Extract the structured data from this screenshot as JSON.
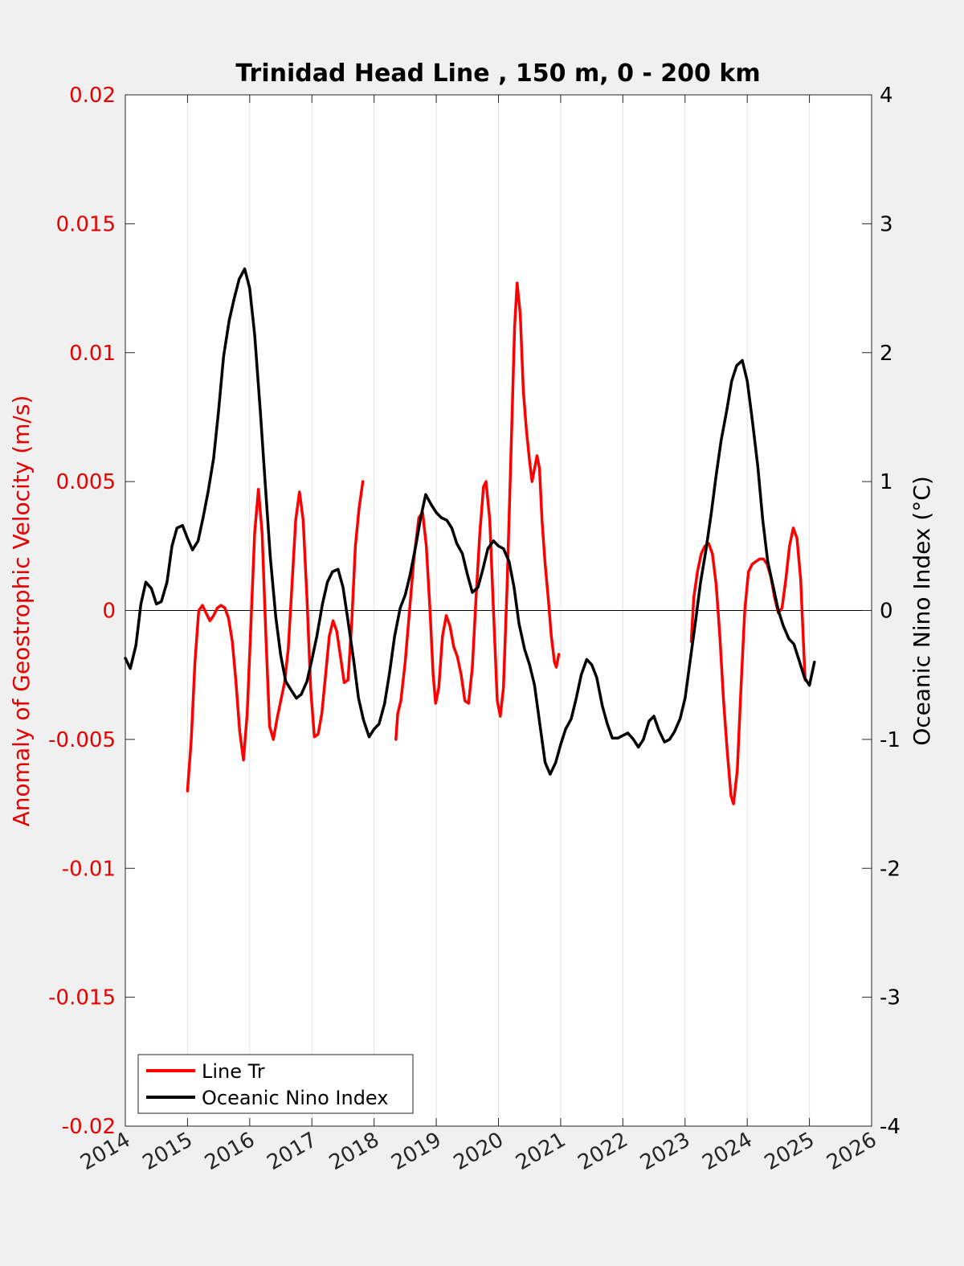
{
  "chart_data": {
    "type": "line",
    "title": "Trinidad Head Line , 150 m, 0 - 200 km",
    "ylabel_left": "Anomaly of Geostrophic Velocity (m/s)",
    "ylabel_right": "Oceanic Nino Index (°C)",
    "xlabel": "",
    "xlim": [
      2014,
      2026
    ],
    "ylim_left": [
      -0.02,
      0.02
    ],
    "ylim_right": [
      -4,
      4
    ],
    "x_ticks": [
      "2014",
      "2015",
      "2016",
      "2017",
      "2018",
      "2019",
      "2020",
      "2021",
      "2022",
      "2023",
      "2024",
      "2025",
      "2026"
    ],
    "y_left_ticks": [
      "0.02",
      "0.015",
      "0.01",
      "0.005",
      "0",
      "-0.005",
      "-0.01",
      "-0.015",
      "-0.02"
    ],
    "y_right_ticks": [
      "4",
      "3",
      "2",
      "1",
      "0",
      "-1",
      "-2",
      "-3",
      "-4"
    ],
    "grid": "vertical",
    "legend_position": "bottom-left",
    "colors": {
      "line_tr": "#ff0000",
      "oni": "#000000",
      "left_axis": "#e60000",
      "right_axis": "#000000"
    },
    "series": [
      {
        "name": "Line Tr",
        "axis": "left",
        "segments": [
          [
            [
              2015.0,
              -0.007
            ],
            [
              2015.06,
              -0.005
            ],
            [
              2015.12,
              -0.002
            ],
            [
              2015.18,
              0.0
            ],
            [
              2015.24,
              0.0002
            ],
            [
              2015.3,
              -0.0001
            ],
            [
              2015.36,
              -0.0004
            ],
            [
              2015.42,
              -0.0002
            ],
            [
              2015.48,
              0.0001
            ],
            [
              2015.54,
              0.0002
            ],
            [
              2015.6,
              0.0001
            ],
            [
              2015.66,
              -0.0003
            ],
            [
              2015.72,
              -0.0012
            ],
            [
              2015.78,
              -0.0028
            ],
            [
              2015.84,
              -0.0047
            ],
            [
              2015.9,
              -0.0058
            ],
            [
              2015.96,
              -0.004
            ],
            [
              2016.02,
              -0.0005
            ],
            [
              2016.08,
              0.003
            ],
            [
              2016.14,
              0.0047
            ],
            [
              2016.2,
              0.003
            ],
            [
              2016.26,
              -0.001
            ],
            [
              2016.32,
              -0.0045
            ],
            [
              2016.38,
              -0.005
            ],
            [
              2016.44,
              -0.0042
            ],
            [
              2016.5,
              -0.0035
            ],
            [
              2016.56,
              -0.0028
            ],
            [
              2016.62,
              -0.0015
            ],
            [
              2016.68,
              0.001
            ],
            [
              2016.74,
              0.0035
            ],
            [
              2016.8,
              0.0046
            ],
            [
              2016.86,
              0.0035
            ],
            [
              2016.92,
              0.0005
            ],
            [
              2016.98,
              -0.003
            ],
            [
              2017.04,
              -0.0049
            ],
            [
              2017.1,
              -0.0048
            ],
            [
              2017.16,
              -0.004
            ],
            [
              2017.22,
              -0.0025
            ],
            [
              2017.28,
              -0.001
            ],
            [
              2017.34,
              -0.0004
            ],
            [
              2017.4,
              -0.0008
            ],
            [
              2017.46,
              -0.0018
            ],
            [
              2017.52,
              -0.0028
            ],
            [
              2017.58,
              -0.0027
            ],
            [
              2017.64,
              -0.0005
            ],
            [
              2017.7,
              0.0025
            ],
            [
              2017.76,
              0.004
            ],
            [
              2017.82,
              0.005
            ]
          ],
          [
            [
              2018.35,
              -0.005
            ],
            [
              2018.38,
              -0.004
            ],
            [
              2018.43,
              -0.0035
            ],
            [
              2018.5,
              -0.002
            ],
            [
              2018.57,
              0.0
            ],
            [
              2018.64,
              0.002
            ],
            [
              2018.72,
              0.0036
            ],
            [
              2018.78,
              0.0038
            ],
            [
              2018.84,
              0.0025
            ],
            [
              2018.9,
              0.0
            ],
            [
              2018.95,
              -0.0025
            ],
            [
              2018.99,
              -0.0036
            ],
            [
              2019.04,
              -0.003
            ],
            [
              2019.1,
              -0.001
            ],
            [
              2019.16,
              -0.0002
            ],
            [
              2019.22,
              -0.0006
            ],
            [
              2019.28,
              -0.0014
            ],
            [
              2019.34,
              -0.0018
            ],
            [
              2019.4,
              -0.0025
            ],
            [
              2019.46,
              -0.0035
            ],
            [
              2019.52,
              -0.0036
            ],
            [
              2019.58,
              -0.0022
            ],
            [
              2019.64,
              0.0005
            ],
            [
              2019.7,
              0.003
            ],
            [
              2019.76,
              0.0048
            ],
            [
              2019.8,
              0.005
            ],
            [
              2019.86,
              0.0035
            ],
            [
              2019.92,
              0.0
            ],
            [
              2019.98,
              -0.0035
            ],
            [
              2020.03,
              -0.0041
            ],
            [
              2020.08,
              -0.003
            ],
            [
              2020.14,
              0.001
            ],
            [
              2020.2,
              0.006
            ],
            [
              2020.26,
              0.011
            ],
            [
              2020.3,
              0.0127
            ],
            [
              2020.35,
              0.0115
            ],
            [
              2020.4,
              0.0085
            ],
            [
              2020.45,
              0.007
            ],
            [
              2020.5,
              0.0058
            ],
            [
              2020.54,
              0.005
            ],
            [
              2020.58,
              0.0055
            ],
            [
              2020.62,
              0.006
            ],
            [
              2020.66,
              0.0055
            ],
            [
              2020.7,
              0.0035
            ],
            [
              2020.75,
              0.0018
            ],
            [
              2020.8,
              0.0005
            ],
            [
              2020.85,
              -0.001
            ],
            [
              2020.9,
              -0.002
            ],
            [
              2020.93,
              -0.0022
            ],
            [
              2020.97,
              -0.0017
            ]
          ],
          [
            [
              2023.1,
              -0.0012
            ],
            [
              2023.14,
              0.0005
            ],
            [
              2023.2,
              0.0015
            ],
            [
              2023.26,
              0.0022
            ],
            [
              2023.32,
              0.0025
            ],
            [
              2023.38,
              0.0026
            ],
            [
              2023.44,
              0.0022
            ],
            [
              2023.5,
              0.001
            ],
            [
              2023.56,
              -0.001
            ],
            [
              2023.62,
              -0.0035
            ],
            [
              2023.68,
              -0.0055
            ],
            [
              2023.74,
              -0.0072
            ],
            [
              2023.78,
              -0.0075
            ],
            [
              2023.84,
              -0.0062
            ],
            [
              2023.9,
              -0.003
            ],
            [
              2023.96,
              0.0
            ],
            [
              2024.02,
              0.0015
            ],
            [
              2024.08,
              0.0018
            ],
            [
              2024.14,
              0.0019
            ],
            [
              2024.2,
              0.002
            ],
            [
              2024.26,
              0.002
            ],
            [
              2024.32,
              0.0018
            ],
            [
              2024.38,
              0.0013
            ],
            [
              2024.44,
              0.0005
            ],
            [
              2024.5,
              -0.0001
            ],
            [
              2024.56,
              0.0001
            ],
            [
              2024.62,
              0.0012
            ],
            [
              2024.68,
              0.0025
            ],
            [
              2024.74,
              0.0032
            ],
            [
              2024.8,
              0.0028
            ],
            [
              2024.86,
              0.0012
            ],
            [
              2024.9,
              -0.001
            ],
            [
              2024.93,
              -0.0027
            ]
          ]
        ]
      },
      {
        "name": "Oceanic Nino Index",
        "axis": "right",
        "points": [
          [
            2014.0,
            -0.37
          ],
          [
            2014.08,
            -0.45
          ],
          [
            2014.17,
            -0.27
          ],
          [
            2014.25,
            0.05
          ],
          [
            2014.33,
            0.22
          ],
          [
            2014.42,
            0.17
          ],
          [
            2014.5,
            0.05
          ],
          [
            2014.58,
            0.07
          ],
          [
            2014.67,
            0.22
          ],
          [
            2014.75,
            0.5
          ],
          [
            2014.83,
            0.64
          ],
          [
            2014.92,
            0.66
          ],
          [
            2015.0,
            0.56
          ],
          [
            2015.08,
            0.47
          ],
          [
            2015.17,
            0.54
          ],
          [
            2015.25,
            0.72
          ],
          [
            2015.33,
            0.92
          ],
          [
            2015.42,
            1.18
          ],
          [
            2015.5,
            1.55
          ],
          [
            2015.58,
            1.97
          ],
          [
            2015.67,
            2.25
          ],
          [
            2015.75,
            2.42
          ],
          [
            2015.83,
            2.57
          ],
          [
            2015.92,
            2.65
          ],
          [
            2016.0,
            2.5
          ],
          [
            2016.08,
            2.14
          ],
          [
            2016.17,
            1.55
          ],
          [
            2016.25,
            0.98
          ],
          [
            2016.33,
            0.42
          ],
          [
            2016.42,
            -0.05
          ],
          [
            2016.5,
            -0.35
          ],
          [
            2016.58,
            -0.55
          ],
          [
            2016.67,
            -0.62
          ],
          [
            2016.75,
            -0.68
          ],
          [
            2016.83,
            -0.65
          ],
          [
            2016.92,
            -0.55
          ],
          [
            2017.0,
            -0.38
          ],
          [
            2017.08,
            -0.2
          ],
          [
            2017.17,
            0.05
          ],
          [
            2017.25,
            0.22
          ],
          [
            2017.33,
            0.3
          ],
          [
            2017.42,
            0.32
          ],
          [
            2017.5,
            0.18
          ],
          [
            2017.58,
            -0.08
          ],
          [
            2017.67,
            -0.38
          ],
          [
            2017.75,
            -0.68
          ],
          [
            2017.83,
            -0.85
          ],
          [
            2017.92,
            -0.98
          ],
          [
            2018.0,
            -0.92
          ],
          [
            2018.08,
            -0.88
          ],
          [
            2018.17,
            -0.72
          ],
          [
            2018.25,
            -0.48
          ],
          [
            2018.33,
            -0.2
          ],
          [
            2018.42,
            0.02
          ],
          [
            2018.5,
            0.12
          ],
          [
            2018.58,
            0.28
          ],
          [
            2018.67,
            0.5
          ],
          [
            2018.75,
            0.72
          ],
          [
            2018.83,
            0.9
          ],
          [
            2018.92,
            0.82
          ],
          [
            2019.0,
            0.76
          ],
          [
            2019.08,
            0.72
          ],
          [
            2019.17,
            0.7
          ],
          [
            2019.25,
            0.64
          ],
          [
            2019.33,
            0.52
          ],
          [
            2019.42,
            0.44
          ],
          [
            2019.5,
            0.28
          ],
          [
            2019.58,
            0.14
          ],
          [
            2019.67,
            0.18
          ],
          [
            2019.75,
            0.32
          ],
          [
            2019.83,
            0.48
          ],
          [
            2019.92,
            0.54
          ],
          [
            2020.0,
            0.5
          ],
          [
            2020.08,
            0.48
          ],
          [
            2020.17,
            0.38
          ],
          [
            2020.25,
            0.18
          ],
          [
            2020.33,
            -0.1
          ],
          [
            2020.42,
            -0.3
          ],
          [
            2020.5,
            -0.42
          ],
          [
            2020.58,
            -0.58
          ],
          [
            2020.67,
            -0.9
          ],
          [
            2020.75,
            -1.18
          ],
          [
            2020.83,
            -1.27
          ],
          [
            2020.92,
            -1.18
          ],
          [
            2021.0,
            -1.04
          ],
          [
            2021.08,
            -0.92
          ],
          [
            2021.17,
            -0.84
          ],
          [
            2021.25,
            -0.68
          ],
          [
            2021.33,
            -0.5
          ],
          [
            2021.42,
            -0.38
          ],
          [
            2021.5,
            -0.42
          ],
          [
            2021.58,
            -0.52
          ],
          [
            2021.67,
            -0.74
          ],
          [
            2021.75,
            -0.88
          ],
          [
            2021.83,
            -0.99
          ],
          [
            2021.92,
            -0.99
          ],
          [
            2022.0,
            -0.97
          ],
          [
            2022.08,
            -0.95
          ],
          [
            2022.17,
            -1.0
          ],
          [
            2022.25,
            -1.06
          ],
          [
            2022.33,
            -1.0
          ],
          [
            2022.42,
            -0.86
          ],
          [
            2022.5,
            -0.82
          ],
          [
            2022.58,
            -0.93
          ],
          [
            2022.67,
            -1.02
          ],
          [
            2022.75,
            -1.0
          ],
          [
            2022.83,
            -0.94
          ],
          [
            2022.92,
            -0.84
          ],
          [
            2023.0,
            -0.68
          ],
          [
            2023.08,
            -0.4
          ],
          [
            2023.17,
            -0.08
          ],
          [
            2023.25,
            0.22
          ],
          [
            2023.33,
            0.45
          ],
          [
            2023.42,
            0.75
          ],
          [
            2023.5,
            1.05
          ],
          [
            2023.58,
            1.32
          ],
          [
            2023.67,
            1.55
          ],
          [
            2023.75,
            1.78
          ],
          [
            2023.83,
            1.9
          ],
          [
            2023.92,
            1.94
          ],
          [
            2024.0,
            1.78
          ],
          [
            2024.08,
            1.48
          ],
          [
            2024.17,
            1.12
          ],
          [
            2024.25,
            0.7
          ],
          [
            2024.33,
            0.38
          ],
          [
            2024.42,
            0.18
          ],
          [
            2024.5,
            0.0
          ],
          [
            2024.58,
            -0.12
          ],
          [
            2024.67,
            -0.22
          ],
          [
            2024.75,
            -0.26
          ],
          [
            2024.83,
            -0.38
          ],
          [
            2024.92,
            -0.52
          ],
          [
            2025.0,
            -0.58
          ],
          [
            2025.08,
            -0.4
          ]
        ]
      }
    ]
  }
}
